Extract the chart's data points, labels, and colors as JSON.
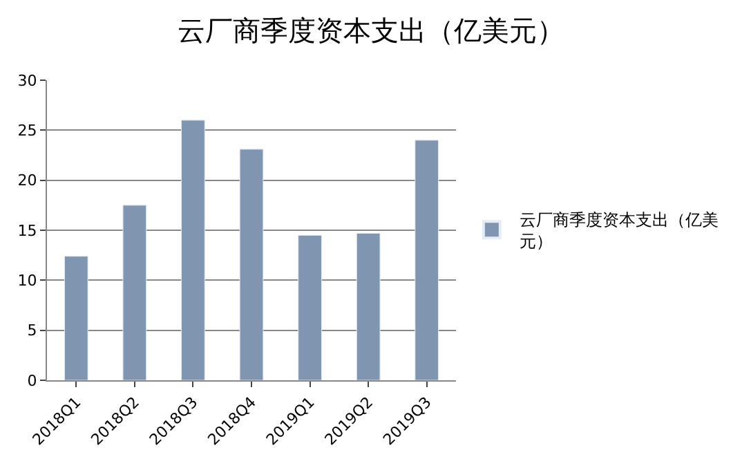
{
  "chart_data": {
    "type": "bar",
    "title": "云厂商季度资本支出（亿美元）",
    "categories": [
      "2018Q1",
      "2018Q2",
      "2018Q3",
      "2018Q4",
      "2019Q1",
      "2019Q2",
      "2019Q3"
    ],
    "series": [
      {
        "name": "云厂商季度资本支出（亿美元）",
        "color": "#8096b0",
        "values": [
          12.4,
          17.5,
          26.0,
          23.1,
          14.5,
          14.7,
          24.0
        ]
      }
    ],
    "ylim": [
      0,
      30
    ],
    "yticks": [
      0,
      5,
      10,
      15,
      20,
      25,
      30
    ],
    "grid": "y",
    "legend": "right"
  }
}
